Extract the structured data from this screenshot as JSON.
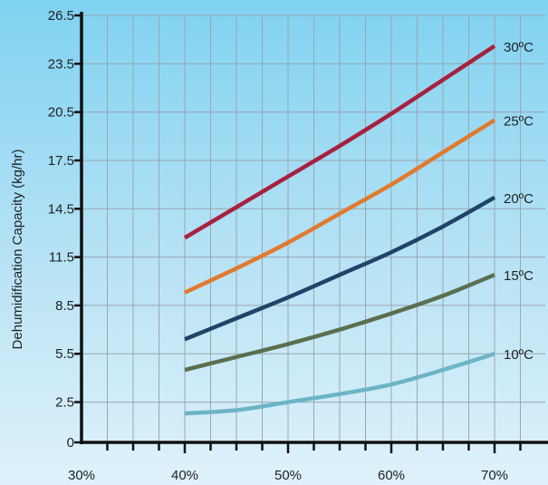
{
  "chart_data": {
    "type": "line",
    "title": "",
    "xlabel": "",
    "ylabel": "Dehumidification Capacity (kg/hr)",
    "xlim": [
      30,
      70
    ],
    "ylim": [
      0,
      26.5
    ],
    "x_ticks": [
      30,
      40,
      50,
      60,
      70
    ],
    "x_tick_labels": [
      "30%",
      "40%",
      "50%",
      "60%",
      "70%"
    ],
    "y_ticks": [
      0,
      2.5,
      5.5,
      8.5,
      11.5,
      14.5,
      17.5,
      20.5,
      23.5,
      26.5
    ],
    "y_tick_labels": [
      "0",
      "2.5",
      "5.5",
      "8.5",
      "11.5",
      "14.5",
      "17.5",
      "20.5",
      "23.5",
      "26.5"
    ],
    "grid": true,
    "x": [
      40,
      45,
      50,
      55,
      60,
      65,
      70
    ],
    "series": [
      {
        "name": "30ºC",
        "color": "#a8203f",
        "values": [
          12.7,
          14.6,
          16.5,
          18.4,
          20.4,
          22.5,
          24.6
        ]
      },
      {
        "name": "25ºC",
        "color": "#e07a2e",
        "values": [
          9.3,
          10.8,
          12.4,
          14.2,
          16.0,
          18.0,
          20.0
        ]
      },
      {
        "name": "20ºC",
        "color": "#1f4468",
        "values": [
          6.4,
          7.7,
          9.0,
          10.4,
          11.8,
          13.4,
          15.2
        ]
      },
      {
        "name": "15ºC",
        "color": "#5b6f50",
        "values": [
          4.5,
          5.3,
          6.1,
          7.0,
          8.0,
          9.1,
          10.4
        ]
      },
      {
        "name": "10ºC",
        "color": "#6cb4c6",
        "values": [
          1.8,
          2.0,
          2.5,
          3.0,
          3.6,
          4.5,
          5.5
        ]
      }
    ]
  }
}
